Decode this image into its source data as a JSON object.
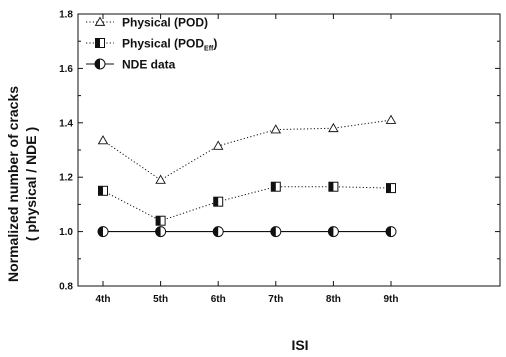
{
  "chart_data": {
    "type": "line",
    "xlabel": "ISI",
    "ylabel_line1": "Normalized number of cracks",
    "ylabel_line2": "( physical / NDE )",
    "categories": [
      "4th",
      "5th",
      "6th",
      "7th",
      "8th",
      "9th"
    ],
    "ylim": [
      0.8,
      1.8
    ],
    "yticks": [
      0.8,
      1.0,
      1.2,
      1.4,
      1.6,
      1.8
    ],
    "ytick_labels": [
      "0.8",
      "1.0",
      "1.2",
      "1.4",
      "1.6",
      "1.8"
    ],
    "grid": false,
    "legend_position": "top-left",
    "series": [
      {
        "name": "Physical (POD)",
        "legend_main": "Physical (POD)",
        "legend_sub": "",
        "legend_tail": "",
        "marker": "triangle-open",
        "line": "dotted",
        "values": [
          1.335,
          1.19,
          1.315,
          1.375,
          1.38,
          1.41
        ]
      },
      {
        "name": "Physical (POD_Eff)",
        "legend_main": "Physical (POD",
        "legend_sub": "Eff",
        "legend_tail": ")",
        "marker": "square-half",
        "line": "dotted",
        "values": [
          1.15,
          1.04,
          1.11,
          1.165,
          1.165,
          1.16
        ]
      },
      {
        "name": "NDE data",
        "legend_main": "NDE data",
        "legend_sub": "",
        "legend_tail": "",
        "marker": "circle-half",
        "line": "solid",
        "values": [
          1.0,
          1.0,
          1.0,
          1.0,
          1.0,
          1.0
        ]
      }
    ]
  }
}
